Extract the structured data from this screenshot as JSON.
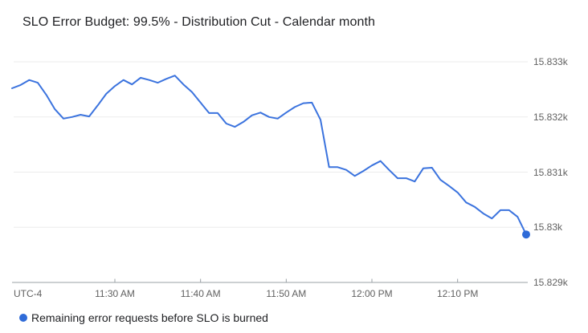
{
  "title": "SLO Error Budget: 99.5% - Distribution Cut - Calendar month",
  "legend": {
    "series_label": "Remaining error requests before SLO is burned"
  },
  "colors": {
    "line": "#3b73de",
    "marker": "#2f6bd8",
    "grid": "#ebebeb",
    "baseline": "#9aa0a6",
    "tick": "#9aa0a6",
    "label_gray": "#616161",
    "title_color": "#202124"
  },
  "chart_data": {
    "type": "line",
    "title": "SLO Error Budget: 99.5% - Distribution Cut - Calendar month",
    "xlabel": "",
    "ylabel": "",
    "utc_label": "UTC-4",
    "grid": true,
    "legend_position": "bottom-left",
    "ylim": [
      15829,
      15833
    ],
    "y_ticks": [
      {
        "value": 15833,
        "label": "15.833k"
      },
      {
        "value": 15832,
        "label": "15.832k"
      },
      {
        "value": 15831,
        "label": "15.831k"
      },
      {
        "value": 15830,
        "label": "15.83k"
      },
      {
        "value": 15829,
        "label": "15.829k"
      }
    ],
    "x_ticks": [
      {
        "index": 12,
        "label": "11:30 AM"
      },
      {
        "index": 22,
        "label": "11:40 AM"
      },
      {
        "index": 32,
        "label": "11:50 AM"
      },
      {
        "index": 42,
        "label": "12:00 PM"
      },
      {
        "index": 52,
        "label": "12:10 PM"
      }
    ],
    "series": [
      {
        "name": "Remaining error requests before SLO is burned",
        "end_marker": true,
        "values": [
          15832.52,
          15832.58,
          15832.67,
          15832.62,
          15832.4,
          15832.14,
          15831.97,
          15832.0,
          15832.04,
          15832.01,
          15832.21,
          15832.42,
          15832.56,
          15832.67,
          15832.59,
          15832.71,
          15832.67,
          15832.62,
          15832.69,
          15832.75,
          15832.59,
          15832.45,
          15832.26,
          15832.07,
          15832.07,
          15831.88,
          15831.82,
          15831.91,
          15832.03,
          15832.08,
          15832.0,
          15831.97,
          15832.08,
          15832.18,
          15832.25,
          15832.26,
          15831.95,
          15831.09,
          15831.09,
          15831.04,
          15830.93,
          15831.02,
          15831.12,
          15831.2,
          15831.04,
          15830.89,
          15830.89,
          15830.83,
          15831.07,
          15831.08,
          15830.86,
          15830.75,
          15830.63,
          15830.45,
          15830.37,
          15830.25,
          15830.16,
          15830.31,
          15830.31,
          15830.19,
          15829.87
        ]
      }
    ]
  }
}
